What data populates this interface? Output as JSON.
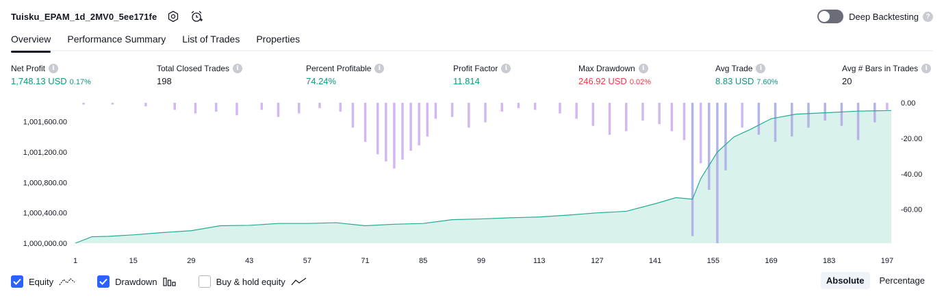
{
  "header": {
    "strategy_name": "Tuisku_EPAM_1d_2MV0_5ee171fe",
    "deep_backtesting_label": "Deep Backtesting",
    "deep_backtesting_on": false
  },
  "tabs": [
    {
      "label": "Overview",
      "active": true
    },
    {
      "label": "Performance Summary",
      "active": false
    },
    {
      "label": "List of Trades",
      "active": false
    },
    {
      "label": "Properties",
      "active": false
    }
  ],
  "stats": {
    "net_profit": {
      "label": "Net Profit",
      "value": "1,748.13 USD",
      "pct": "0.17%"
    },
    "total_closed_trades": {
      "label": "Total Closed Trades",
      "value": "198"
    },
    "percent_profitable": {
      "label": "Percent Profitable",
      "value": "74.24%"
    },
    "profit_factor": {
      "label": "Profit Factor",
      "value": "11.814"
    },
    "max_drawdown": {
      "label": "Max Drawdown",
      "value": "246.92 USD",
      "pct": "0.02%"
    },
    "avg_trade": {
      "label": "Avg Trade",
      "value": "8.83 USD",
      "pct": "7.60%"
    },
    "avg_bars": {
      "label": "Avg # Bars in Trades",
      "value": "20"
    }
  },
  "legend": {
    "equity": {
      "label": "Equity",
      "checked": true
    },
    "drawdown": {
      "label": "Drawdown",
      "checked": true
    },
    "buy_hold": {
      "label": "Buy & hold equity",
      "checked": false
    }
  },
  "mode": {
    "absolute": "Absolute",
    "percentage": "Percentage",
    "selected": "Absolute"
  },
  "colors": {
    "equity_line": "#22ab94",
    "equity_fill": "#d4f0e9",
    "drawdown_bar": "#d2b8f2",
    "drawdown_bar_overlap": "#b4b5e6",
    "positive": "#089981",
    "negative": "#f23645",
    "accent": "#2962ff"
  },
  "chart_data": {
    "type": "line",
    "left_axis": {
      "ticks": [
        1000000,
        1000400,
        1000800,
        1001200,
        1001600
      ],
      "tick_labels": [
        "1,000,000.00",
        "1,000,400.00",
        "1,000,800.00",
        "1,001,200.00",
        "1,001,600.00"
      ],
      "ylim": [
        1000000,
        1001850
      ]
    },
    "right_axis": {
      "ticks": [
        0,
        -20,
        -40,
        -60
      ],
      "tick_labels": [
        "0.00",
        "-20.00",
        "-40.00",
        "-60.00"
      ],
      "ylim": [
        -79,
        0
      ]
    },
    "x_axis": {
      "tick_labels": [
        "1",
        "15",
        "29",
        "43",
        "57",
        "71",
        "85",
        "99",
        "113",
        "127",
        "141",
        "155",
        "169",
        "183",
        "197"
      ],
      "xlim": [
        1,
        198
      ]
    },
    "series": [
      {
        "name": "Equity",
        "kind": "line-area",
        "axis": "left",
        "x": [
          1,
          5,
          9,
          15,
          22,
          29,
          36,
          43,
          50,
          57,
          64,
          71,
          78,
          85,
          92,
          99,
          106,
          113,
          120,
          127,
          134,
          141,
          146,
          150,
          152,
          156,
          160,
          164,
          169,
          175,
          183,
          190,
          198
        ],
        "values": [
          1000000,
          1000085,
          1000090,
          1000110,
          1000140,
          1000165,
          1000230,
          1000235,
          1000260,
          1000260,
          1000270,
          1000230,
          1000250,
          1000260,
          1000310,
          1000320,
          1000335,
          1000345,
          1000370,
          1000400,
          1000420,
          1000520,
          1000600,
          1000580,
          1000850,
          1001200,
          1001400,
          1001500,
          1001640,
          1001700,
          1001720,
          1001740,
          1001748
        ]
      },
      {
        "name": "Drawdown",
        "kind": "bar",
        "axis": "right",
        "x": [
          3,
          10,
          18,
          25,
          30,
          35,
          40,
          46,
          50,
          55,
          60,
          65,
          68,
          71,
          74,
          76,
          78,
          80,
          82,
          84,
          86,
          88,
          92,
          96,
          100,
          104,
          108,
          112,
          118,
          122,
          126,
          130,
          134,
          138,
          142,
          145,
          148,
          150,
          152,
          154,
          156,
          158,
          162,
          166,
          170,
          174,
          178,
          182,
          186,
          190,
          194,
          197
        ],
        "values": [
          -1,
          -1,
          -2,
          -4,
          -6,
          -5,
          -7,
          -4,
          -8,
          -6,
          -3,
          -5,
          -14,
          -22,
          -29,
          -33,
          -37,
          -32,
          -27,
          -24,
          -19,
          -9,
          -8,
          -14,
          -11,
          -5,
          -3,
          -4,
          -6,
          -9,
          -13,
          -18,
          -16,
          -10,
          -12,
          -16,
          -21,
          -75,
          -34,
          -49,
          -79,
          -38,
          -14,
          -18,
          -22,
          -19,
          -14,
          -10,
          -13,
          -21,
          -11,
          -4
        ]
      }
    ]
  }
}
